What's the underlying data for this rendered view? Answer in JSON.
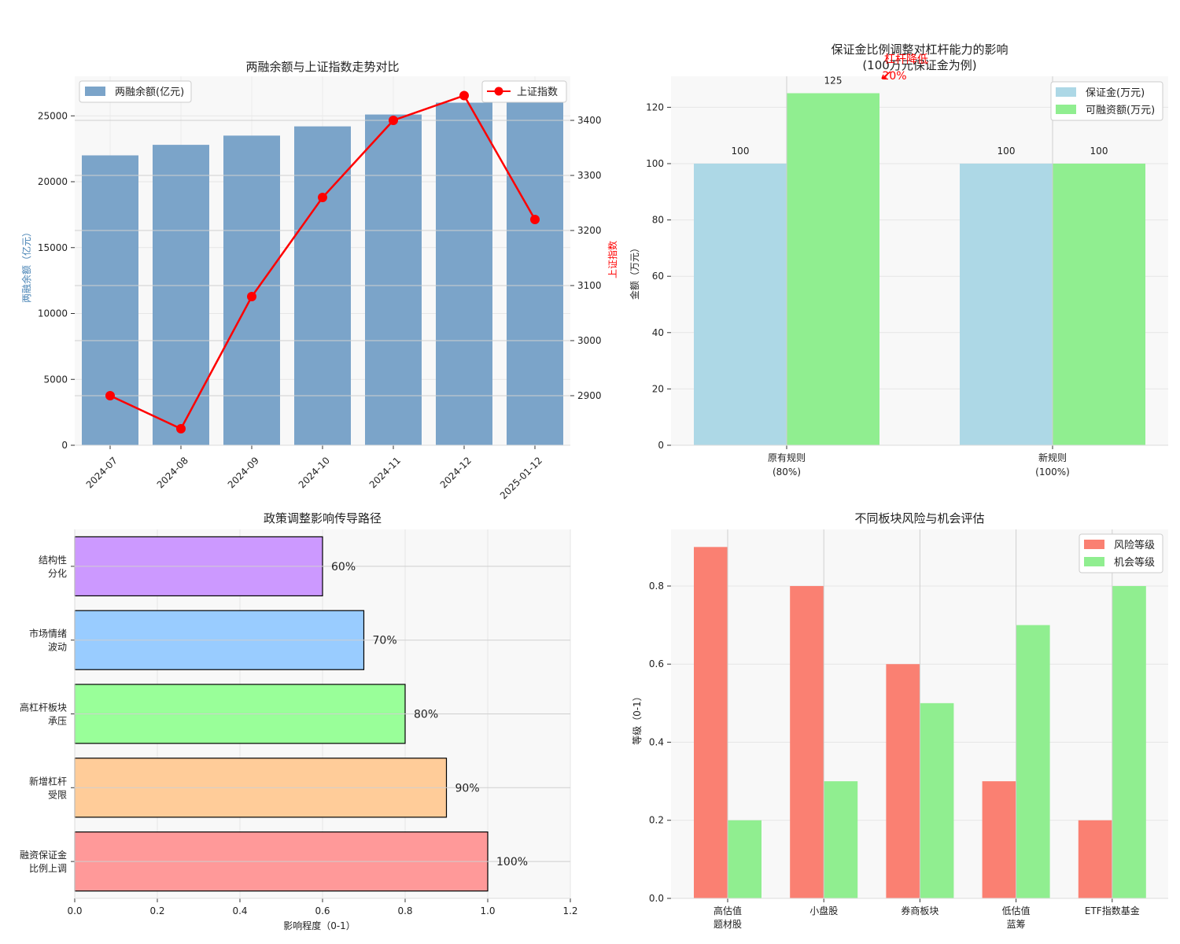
{
  "chart_data": [
    {
      "type": "bar+line",
      "title": "两融余额与上证指数走势对比",
      "categories": [
        "2024-07",
        "2024-08",
        "2024-09",
        "2024-10",
        "2024-11",
        "2024-12",
        "2025-01-12"
      ],
      "bar_series": {
        "name": "两融余额(亿元)",
        "values": [
          22000,
          22800,
          23500,
          24200,
          25100,
          26000,
          26800
        ],
        "color": "#7ba4c9"
      },
      "line_series": {
        "name": "上证指数",
        "values": [
          2900,
          2840,
          3080,
          3260,
          3400,
          3445,
          3220
        ],
        "color": "#ff0000"
      },
      "ylabel_left": "两融余额（亿元）",
      "ylabel_right": "上证指数",
      "ylim_left": [
        0,
        28000
      ],
      "ylim_right": [
        2810,
        3480
      ],
      "left_ticks": [
        0,
        5000,
        10000,
        15000,
        20000,
        25000
      ],
      "right_ticks": [
        2900,
        3000,
        3100,
        3200,
        3300,
        3400
      ],
      "legend_left": "top-left",
      "legend_right": "top-right"
    },
    {
      "type": "bar",
      "title_line1": "保证金比例调整对杠杆能力的影响",
      "title_line2": "(100万元保证金为例)",
      "categories": [
        {
          "line1": "原有规则",
          "line2": "(80%)"
        },
        {
          "line1": "新规则",
          "line2": "(100%)"
        }
      ],
      "series": [
        {
          "name": "保证金(万元)",
          "values": [
            100,
            100
          ],
          "color": "#add8e6"
        },
        {
          "name": "可融资额(万元)",
          "values": [
            125,
            100
          ],
          "color": "#90ee90"
        }
      ],
      "ylabel": "金额（万元）",
      "ylim": [
        0,
        131
      ],
      "yticks": [
        0,
        20,
        40,
        60,
        80,
        100,
        120
      ],
      "annotation_line1": "杠杆降低",
      "annotation_line2": "20%",
      "legend": "top-right"
    },
    {
      "type": "barh",
      "title": "政策调整影响传导路径",
      "categories": [
        {
          "line1": "融资保证金",
          "line2": "比例上调"
        },
        {
          "line1": "新增杠杆",
          "line2": "受限"
        },
        {
          "line1": "高杠杆板块",
          "line2": "承压"
        },
        {
          "line1": "市场情绪",
          "line2": "波动"
        },
        {
          "line1": "结构性",
          "line2": "分化"
        }
      ],
      "values": [
        1.0,
        0.9,
        0.8,
        0.7,
        0.6
      ],
      "labels": [
        "100%",
        "90%",
        "80%",
        "70%",
        "60%"
      ],
      "colors": [
        "#ff9999",
        "#ffcc99",
        "#99ff99",
        "#99ccff",
        "#cc99ff"
      ],
      "xlabel": "影响程度（0-1）",
      "xlim": [
        0,
        1.2
      ],
      "xticks": [
        "0.0",
        "0.2",
        "0.4",
        "0.6",
        "0.8",
        "1.0",
        "1.2"
      ]
    },
    {
      "type": "bar",
      "title": "不同板块风险与机会评估",
      "categories": [
        {
          "line1": "高估值",
          "line2": "题材股"
        },
        {
          "line1": "小盘股",
          "line2": ""
        },
        {
          "line1": "券商板块",
          "line2": ""
        },
        {
          "line1": "低估值",
          "line2": "蓝筹"
        },
        {
          "line1": "ETF指数基金",
          "line2": ""
        }
      ],
      "series": [
        {
          "name": "风险等级",
          "values": [
            0.9,
            0.8,
            0.6,
            0.3,
            0.2
          ],
          "color": "#fa8072"
        },
        {
          "name": "机会等级",
          "values": [
            0.2,
            0.3,
            0.5,
            0.7,
            0.8
          ],
          "color": "#90ee90"
        }
      ],
      "ylabel": "等级（0-1）",
      "ylim": [
        0,
        0.945
      ],
      "yticks": [
        "0.0",
        "0.2",
        "0.4",
        "0.6",
        "0.8"
      ],
      "legend": "top-right"
    }
  ]
}
